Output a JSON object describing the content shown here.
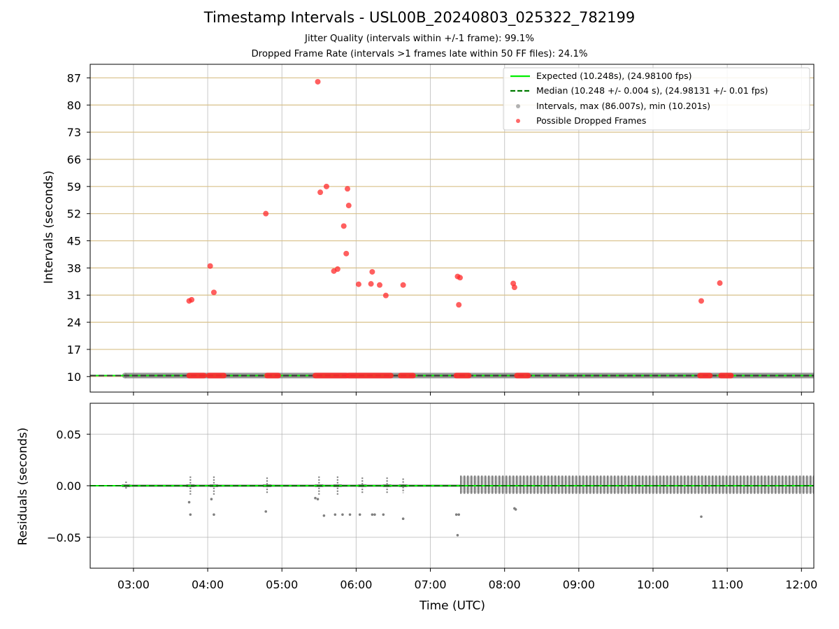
{
  "chart_data": [
    {
      "type": "scatter",
      "title": "Timestamp Intervals - USL00B_20240803_025322_782199",
      "subtitle_lines": [
        "Jitter Quality (intervals within +/-1 frame): 99.1%",
        "Dropped Frame Rate (intervals >1 frames late within 50 FF files): 24.1%"
      ],
      "ylabel": "Intervals (seconds)",
      "ylim": [
        6.0,
        90.5
      ],
      "yticks": [
        "10",
        "17",
        "24",
        "31",
        "38",
        "45",
        "52",
        "59",
        "66",
        "73",
        "80",
        "87"
      ],
      "xlim": [
        "02:25",
        "12:10"
      ],
      "legend_position": "top-right",
      "legend": [
        "Expected (10.248s), (24.98100 fps)",
        "Median (10.248 +/- 0.004 s), (24.98131 +/- 0.01 fps)",
        "Intervals, max (86.007s), min (10.201s)",
        "Possible Dropped Frames"
      ],
      "lines": {
        "expected": 10.248,
        "median": 10.248
      },
      "intervals_range": {
        "start": "02:53",
        "end": "12:10",
        "value": 10.248
      },
      "dropped_frames": [
        {
          "x": "03:45",
          "y": 29.5
        },
        {
          "x": "03:47",
          "y": 29.8
        },
        {
          "x": "04:02",
          "y": 38.5
        },
        {
          "x": "04:05",
          "y": 31.7
        },
        {
          "x": "04:47",
          "y": 52.0
        },
        {
          "x": "05:29",
          "y": 86.0
        },
        {
          "x": "05:31",
          "y": 57.5
        },
        {
          "x": "05:36",
          "y": 59.0
        },
        {
          "x": "05:42",
          "y": 37.2
        },
        {
          "x": "05:45",
          "y": 37.7
        },
        {
          "x": "05:50",
          "y": 48.8
        },
        {
          "x": "05:52",
          "y": 41.7
        },
        {
          "x": "05:53",
          "y": 58.4
        },
        {
          "x": "05:54",
          "y": 54.1
        },
        {
          "x": "06:02",
          "y": 33.8
        },
        {
          "x": "06:12",
          "y": 33.9
        },
        {
          "x": "06:13",
          "y": 37.0
        },
        {
          "x": "06:19",
          "y": 33.6
        },
        {
          "x": "06:24",
          "y": 30.9
        },
        {
          "x": "06:38",
          "y": 33.6
        },
        {
          "x": "07:22",
          "y": 35.8
        },
        {
          "x": "07:23",
          "y": 28.5
        },
        {
          "x": "07:24",
          "y": 35.5
        },
        {
          "x": "08:07",
          "y": 34.0
        },
        {
          "x": "08:08",
          "y": 33.0
        },
        {
          "x": "10:39",
          "y": 29.5
        },
        {
          "x": "10:54",
          "y": 34.1
        }
      ],
      "dropped_frame_clusters_at_baseline": [
        [
          "03:45",
          "03:57"
        ],
        [
          "04:01",
          "04:13"
        ],
        [
          "04:48",
          "04:57"
        ],
        [
          "05:27",
          "05:52"
        ],
        [
          "05:54",
          "06:28"
        ],
        [
          "06:36",
          "06:46"
        ],
        [
          "07:21",
          "07:31"
        ],
        [
          "08:10",
          "08:19"
        ],
        [
          "10:38",
          "10:46"
        ],
        [
          "10:55",
          "11:03"
        ]
      ]
    },
    {
      "type": "scatter",
      "ylabel": "Residuals (seconds)",
      "xlabel": "Time (UTC)",
      "ylim": [
        -0.08,
        0.08
      ],
      "yticks": [
        "0.05",
        "0.00",
        "−0.05"
      ],
      "xticks": [
        "03:00",
        "04:00",
        "05:00",
        "06:00",
        "07:00",
        "08:00",
        "09:00",
        "10:00",
        "11:00",
        "12:00"
      ],
      "xlim": [
        "02:25",
        "12:10"
      ],
      "baseline": 0.0,
      "low_jitter_clusters": [
        {
          "x": "02:54",
          "spread": 0.004
        },
        {
          "x": "03:46",
          "spread": 0.009
        },
        {
          "x": "04:05",
          "spread": 0.009
        },
        {
          "x": "04:48",
          "spread": 0.008
        },
        {
          "x": "05:30",
          "spread": 0.009
        },
        {
          "x": "05:45",
          "spread": 0.009
        },
        {
          "x": "06:05",
          "spread": 0.008
        },
        {
          "x": "06:25",
          "spread": 0.008
        },
        {
          "x": "06:38",
          "spread": 0.007
        }
      ],
      "high_jitter_band": {
        "start": "07:24",
        "end": "12:10",
        "upper": 0.009,
        "lower": -0.007
      },
      "outliers": [
        {
          "x": "03:45",
          "y": -0.016
        },
        {
          "x": "03:46",
          "y": -0.028
        },
        {
          "x": "04:05",
          "y": -0.028
        },
        {
          "x": "04:03",
          "y": -0.013
        },
        {
          "x": "04:47",
          "y": -0.025
        },
        {
          "x": "05:27",
          "y": -0.012
        },
        {
          "x": "05:29",
          "y": -0.013
        },
        {
          "x": "05:34",
          "y": -0.029
        },
        {
          "x": "05:43",
          "y": -0.028
        },
        {
          "x": "05:49",
          "y": -0.028
        },
        {
          "x": "05:55",
          "y": -0.028
        },
        {
          "x": "06:03",
          "y": -0.028
        },
        {
          "x": "06:13",
          "y": -0.028
        },
        {
          "x": "06:15",
          "y": -0.028
        },
        {
          "x": "06:22",
          "y": -0.028
        },
        {
          "x": "06:38",
          "y": -0.032
        },
        {
          "x": "07:21",
          "y": -0.028
        },
        {
          "x": "07:23",
          "y": -0.028
        },
        {
          "x": "07:22",
          "y": -0.048
        },
        {
          "x": "08:08",
          "y": -0.022
        },
        {
          "x": "08:09",
          "y": -0.023
        },
        {
          "x": "10:39",
          "y": -0.03
        }
      ]
    }
  ],
  "colors": {
    "expected": "#00ee00",
    "median": "#007a00",
    "intervals": "#7f7f7f",
    "dropped": "#ff2a2a",
    "hgrid_top": "#d8c089",
    "grid": "#b0b0b0"
  }
}
